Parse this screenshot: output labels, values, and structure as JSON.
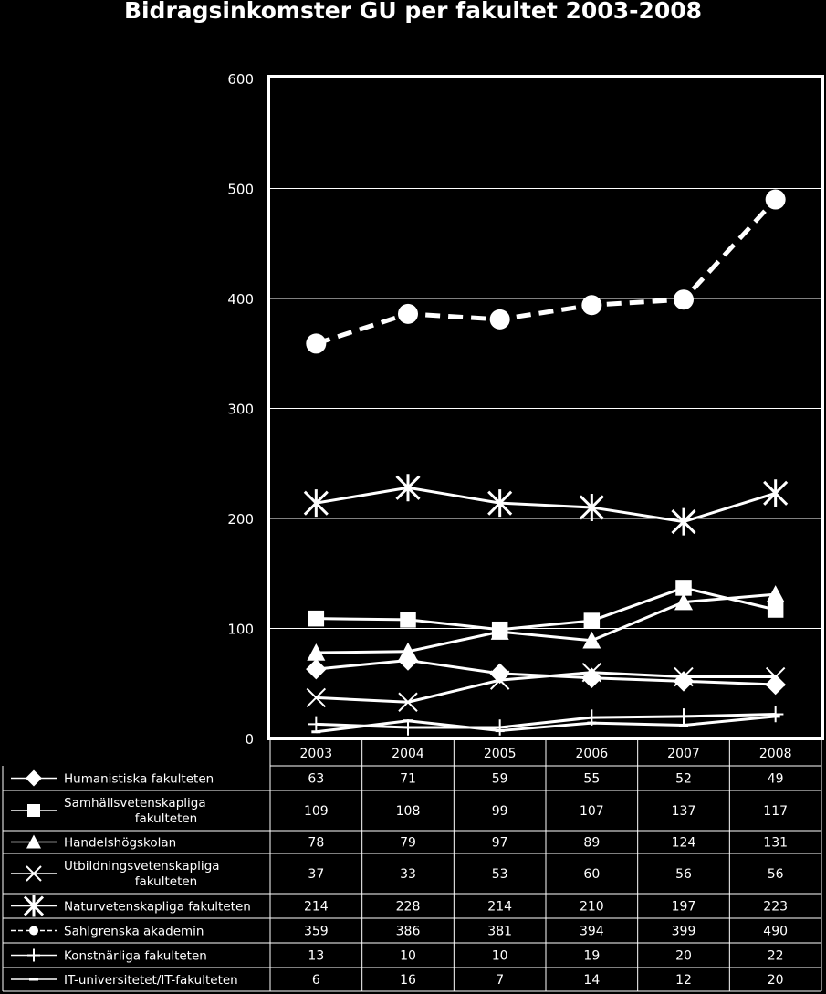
{
  "chart_data": {
    "type": "line",
    "title": "Bidragsinkomster GU per fakultet 2003-2008",
    "xlabel": "",
    "ylabel": "",
    "x": [
      "2003",
      "2004",
      "2005",
      "2006",
      "2007",
      "2008"
    ],
    "ylim": [
      0,
      600
    ],
    "yticks": [
      "0",
      "100",
      "200",
      "300",
      "400",
      "500",
      "600"
    ],
    "grid": true,
    "legend": "data-table-below",
    "line_color": "#ffffff",
    "series": [
      {
        "name": "Humanistiska fakulteten",
        "values": [
          63,
          71,
          59,
          55,
          52,
          49
        ],
        "marker": "diamond",
        "dash": "solid"
      },
      {
        "name": "Samhällsvetenskapliga fakulteten",
        "values": [
          109,
          108,
          99,
          107,
          137,
          117
        ],
        "marker": "square",
        "dash": "solid"
      },
      {
        "name": "Handelshögskolan",
        "values": [
          78,
          79,
          97,
          89,
          124,
          131
        ],
        "marker": "triangle",
        "dash": "solid"
      },
      {
        "name": "Utbildningsvetenskapliga fakulteten",
        "values": [
          37,
          33,
          53,
          60,
          56,
          56
        ],
        "marker": "x",
        "dash": "solid"
      },
      {
        "name": "Naturvetenskapliga fakulteten",
        "values": [
          214,
          228,
          214,
          210,
          197,
          223
        ],
        "marker": "star",
        "dash": "solid"
      },
      {
        "name": "Sahlgrenska akademin",
        "values": [
          359,
          386,
          381,
          394,
          399,
          490
        ],
        "marker": "circle",
        "dash": "dashed"
      },
      {
        "name": "Konstnärliga fakulteten",
        "values": [
          13,
          10,
          10,
          19,
          20,
          22
        ],
        "marker": "plus",
        "dash": "solid"
      },
      {
        "name": "IT-universitetet/IT-fakulteten",
        "values": [
          6,
          16,
          7,
          14,
          12,
          20
        ],
        "marker": "dash",
        "dash": "solid"
      }
    ]
  }
}
